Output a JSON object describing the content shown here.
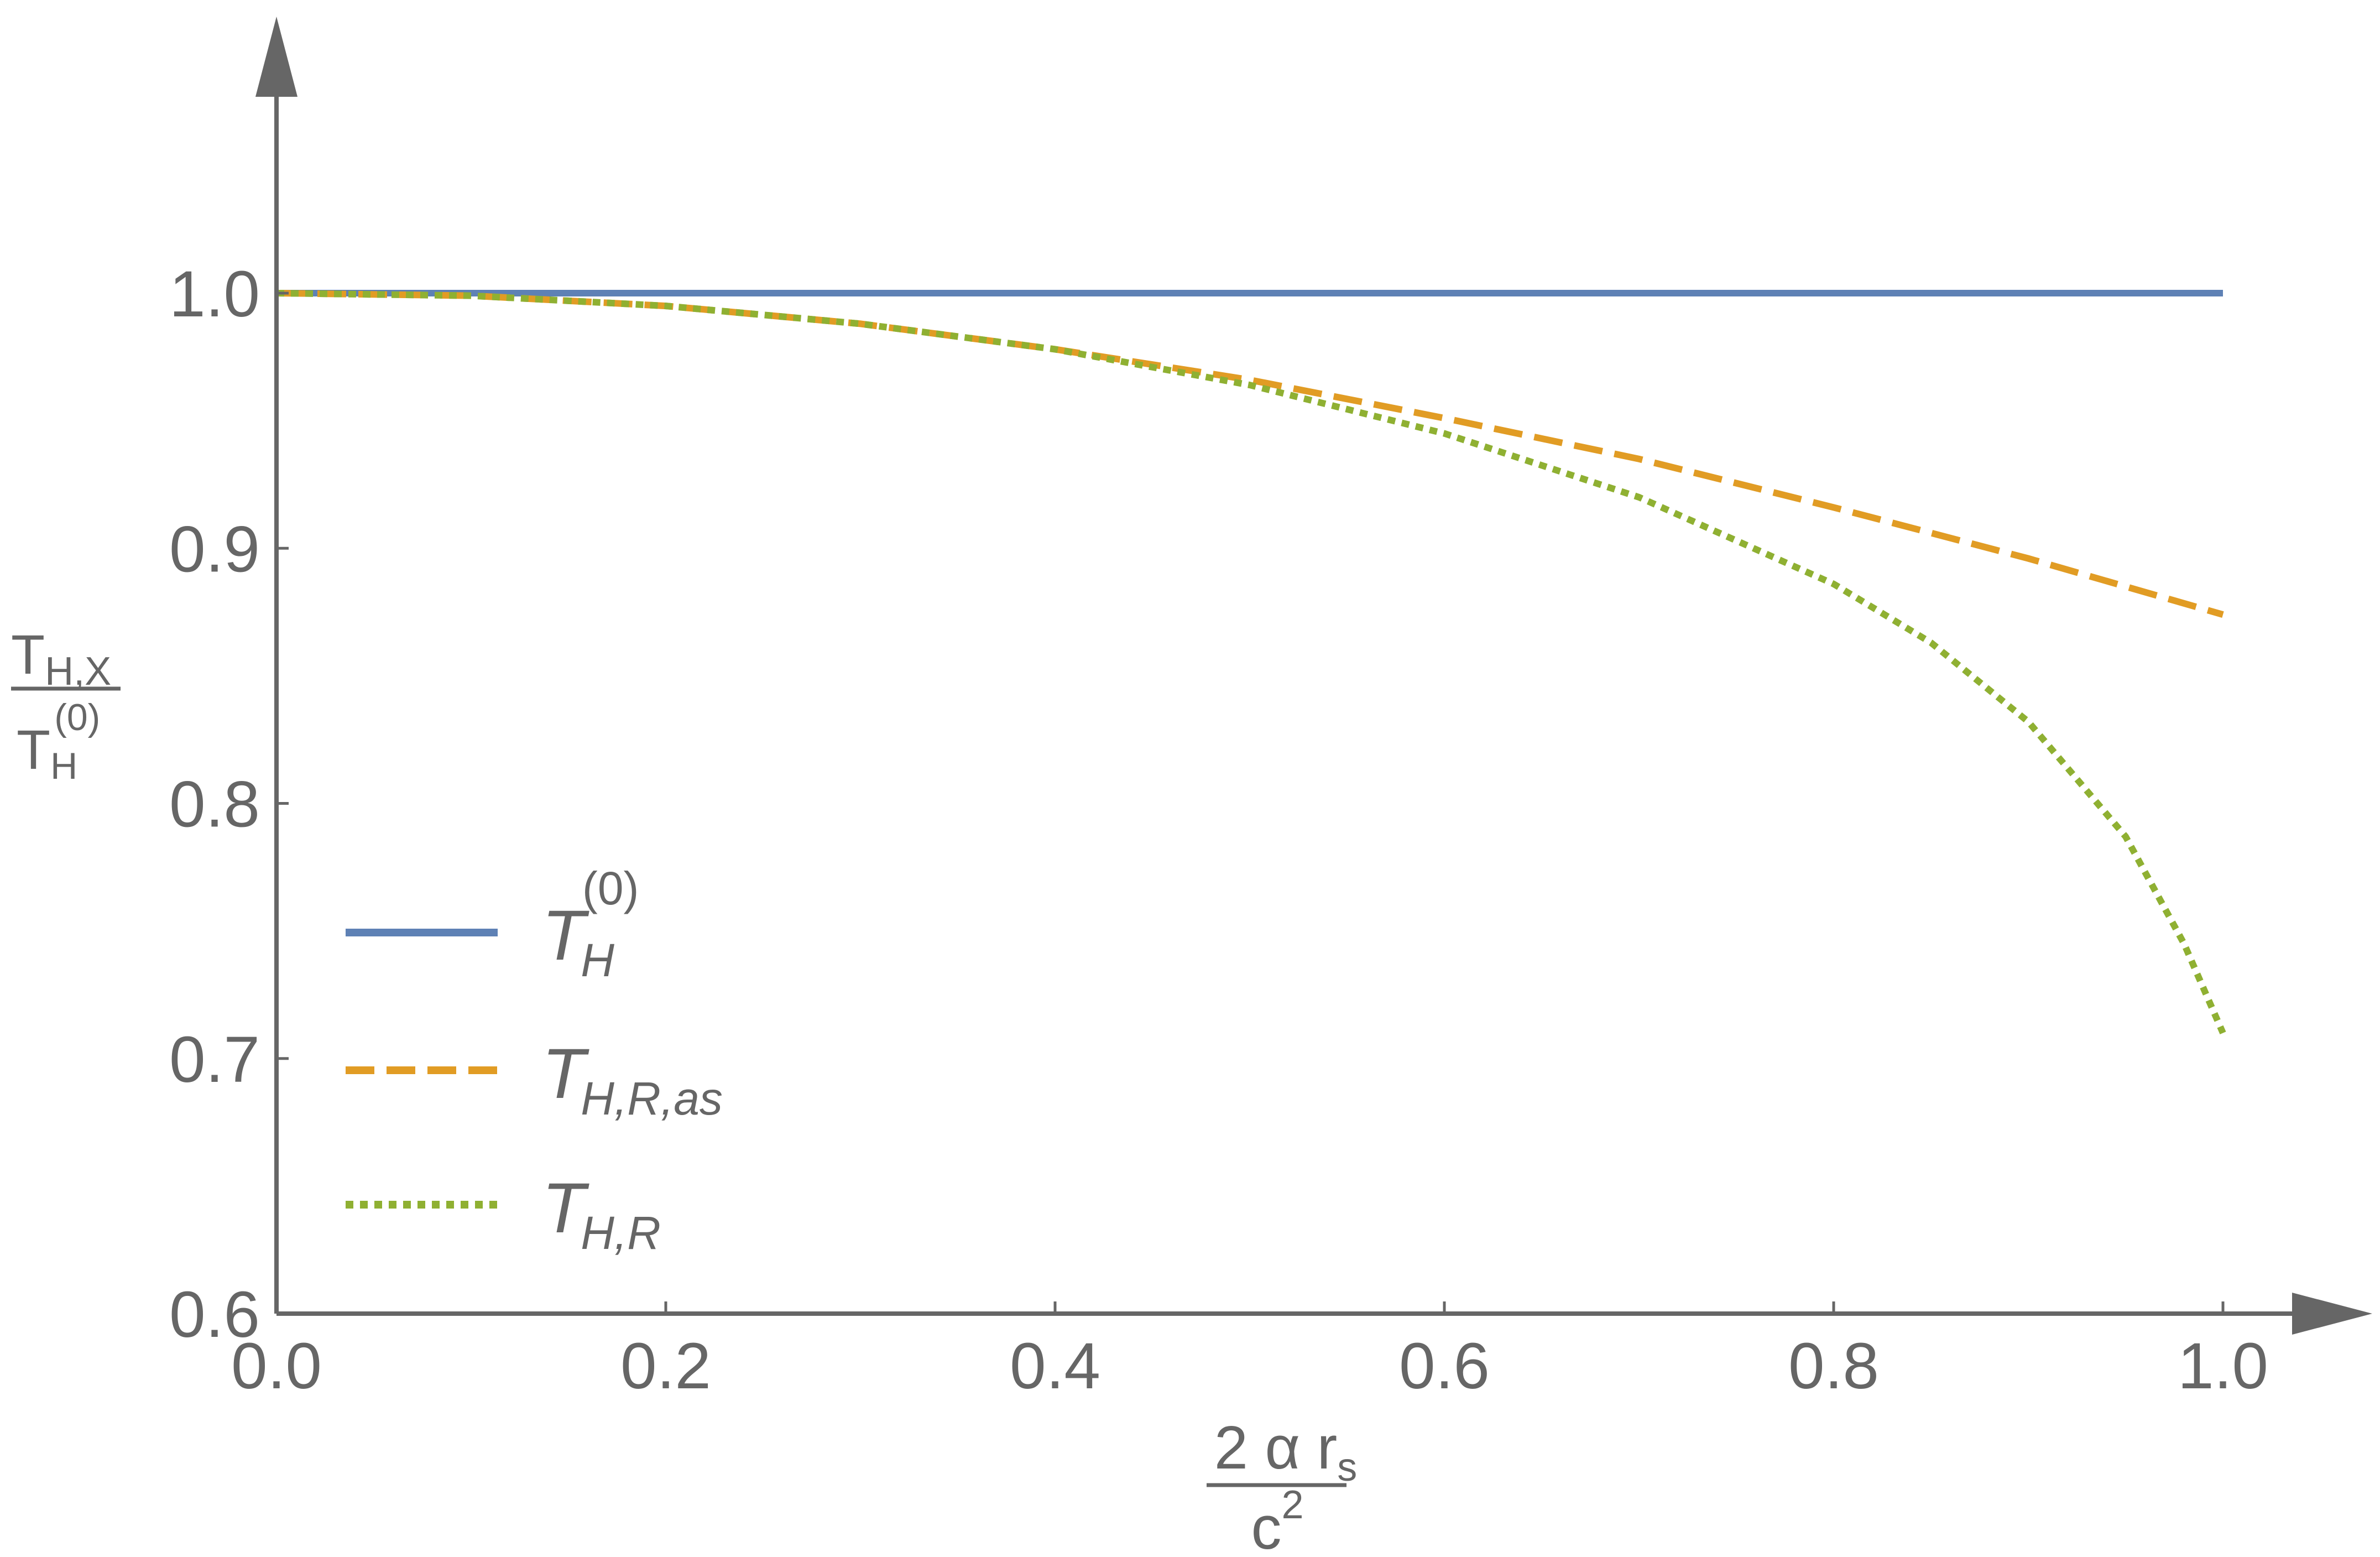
{
  "chart_data": {
    "type": "line",
    "xlabel": {
      "numerator": "2 α r",
      "numerator_sub": "s",
      "denominator": "c",
      "denominator_sup": "2"
    },
    "ylabel": {
      "numerator": "T",
      "numerator_sub": "H,X",
      "denominator": "T",
      "denominator_sub": "H",
      "denominator_sup": "(0)"
    },
    "xlim": [
      0,
      1
    ],
    "ylim": [
      0.6,
      1.1
    ],
    "x_ticks": [
      "0.0",
      "0.2",
      "0.4",
      "0.6",
      "0.8",
      "1.0"
    ],
    "y_ticks": [
      "0.6",
      "0.7",
      "0.8",
      "0.9",
      "1.0"
    ],
    "grid": false,
    "legend_position": "bottom-left",
    "series": [
      {
        "name": "T",
        "name_sub": "H",
        "name_sup": "(0)",
        "style": "solid",
        "color": "#5e81b5",
        "x": [
          0,
          0.1,
          0.2,
          0.3,
          0.4,
          0.5,
          0.6,
          0.7,
          0.8,
          0.9,
          1.0
        ],
        "y": [
          1.0,
          1.0,
          1.0,
          1.0,
          1.0,
          1.0,
          1.0,
          1.0,
          1.0,
          1.0,
          1.0
        ]
      },
      {
        "name": "T",
        "name_sub": "H,R,as",
        "style": "dashed",
        "color": "#e19c24",
        "x": [
          0,
          0.1,
          0.2,
          0.3,
          0.4,
          0.5,
          0.6,
          0.7,
          0.8,
          0.9,
          1.0
        ],
        "y": [
          1.0,
          0.999,
          0.995,
          0.988,
          0.978,
          0.966,
          0.951,
          0.935,
          0.916,
          0.896,
          0.874
        ]
      },
      {
        "name": "T",
        "name_sub": "H,R",
        "style": "dotted",
        "color": "#8fb032",
        "x": [
          0,
          0.1,
          0.2,
          0.3,
          0.4,
          0.5,
          0.6,
          0.7,
          0.8,
          0.85,
          0.9,
          0.95,
          0.98,
          1.0
        ],
        "y": [
          1.0,
          0.999,
          0.995,
          0.988,
          0.978,
          0.964,
          0.945,
          0.92,
          0.886,
          0.863,
          0.832,
          0.787,
          0.745,
          0.71
        ]
      }
    ]
  }
}
